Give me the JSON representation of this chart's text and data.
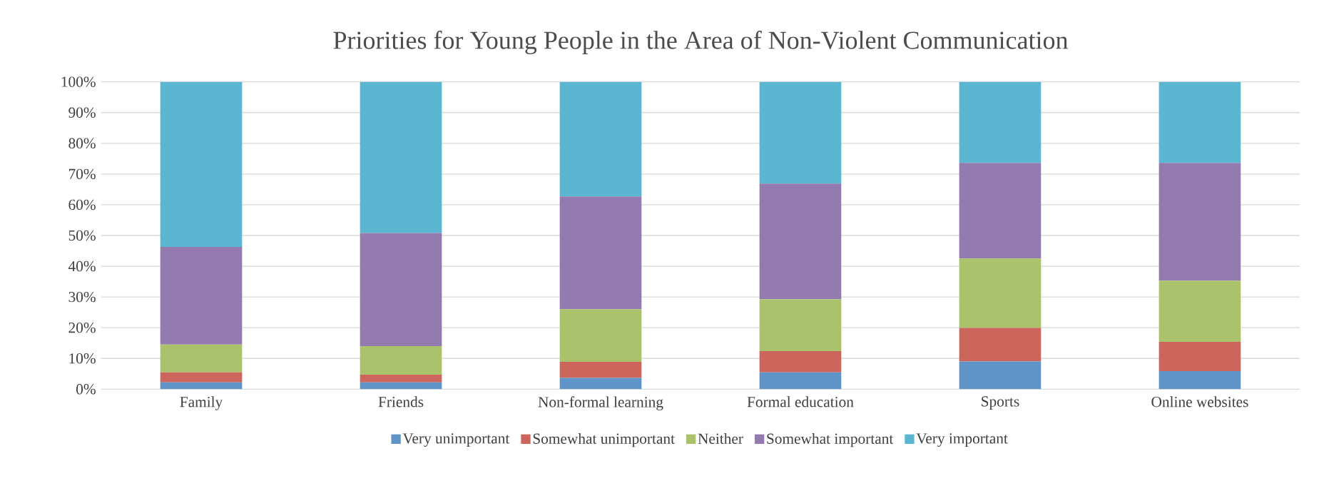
{
  "chart_data": {
    "type": "bar",
    "stacked": true,
    "title": "Priorities for Young People in the Area of Non-Violent Communication",
    "categories": [
      "Family",
      "Friends",
      "Non-formal learning",
      "Formal education",
      "Sports",
      "Online websites"
    ],
    "series": [
      {
        "name": "Very unimportant",
        "color": "#5f94c8",
        "values": [
          2.2,
          2.2,
          3.7,
          5.5,
          9.0,
          5.9
        ]
      },
      {
        "name": "Somewhat unimportant",
        "color": "#cc655c",
        "values": [
          3.3,
          2.5,
          5.2,
          6.9,
          10.9,
          9.5
        ]
      },
      {
        "name": "Neither",
        "color": "#aac26b",
        "values": [
          9.0,
          9.3,
          17.1,
          16.9,
          22.6,
          19.9
        ]
      },
      {
        "name": "Somewhat important",
        "color": "#937aaf",
        "values": [
          31.8,
          36.8,
          36.7,
          37.6,
          31.1,
          38.3
        ]
      },
      {
        "name": "Very important",
        "color": "#5bb7d1",
        "values": [
          53.7,
          49.2,
          37.3,
          33.1,
          26.4,
          26.4
        ]
      }
    ],
    "ylim": [
      0,
      100
    ],
    "yticks": [
      {
        "value": 0,
        "label": "0%"
      },
      {
        "value": 10,
        "label": "10%"
      },
      {
        "value": 20,
        "label": "20%"
      },
      {
        "value": 30,
        "label": "30%"
      },
      {
        "value": 40,
        "label": "40%"
      },
      {
        "value": 50,
        "label": "50%"
      },
      {
        "value": 60,
        "label": "60%"
      },
      {
        "value": 70,
        "label": "70%"
      },
      {
        "value": 80,
        "label": "80%"
      },
      {
        "value": 90,
        "label": "90%"
      },
      {
        "value": 100,
        "label": "100%"
      }
    ],
    "grid": "y",
    "legend": "bottom"
  }
}
